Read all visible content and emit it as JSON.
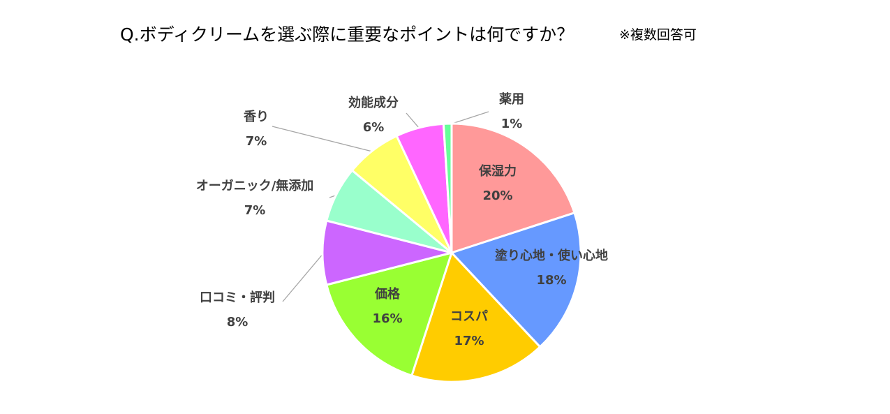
{
  "title": "Q.ボディクリームを選ぶ際に重要なポイントは何ですか？",
  "subtitle": "※複数回答可",
  "chart_data": {
    "type": "pie",
    "title": "Q.ボディクリームを選ぶ際に重要なポイントは何ですか？",
    "subtitle": "※複数回答可",
    "legend": "none",
    "slices": [
      {
        "name": "保湿力",
        "value": 20,
        "label": "20%",
        "color": "#ff9999"
      },
      {
        "name": "塗り心地・使い心地",
        "value": 18,
        "label": "18%",
        "color": "#6699ff"
      },
      {
        "name": "コスパ",
        "value": 17,
        "label": "17%",
        "color": "#ffcc00"
      },
      {
        "name": "価格",
        "value": 16,
        "label": "16%",
        "color": "#99ff33"
      },
      {
        "name": "口コミ・評判",
        "value": 8,
        "label": "8%",
        "color": "#cc66ff"
      },
      {
        "name": "オーガニック/無添加",
        "value": 7,
        "label": "7%",
        "color": "#99ffcc"
      },
      {
        "name": "香り",
        "value": 7,
        "label": "7%",
        "color": "#ffff66"
      },
      {
        "name": "効能成分",
        "value": 6,
        "label": "6%",
        "color": "#ff66ff"
      },
      {
        "name": "薬用",
        "value": 1,
        "label": "1%",
        "color": "#66ff99"
      }
    ]
  }
}
